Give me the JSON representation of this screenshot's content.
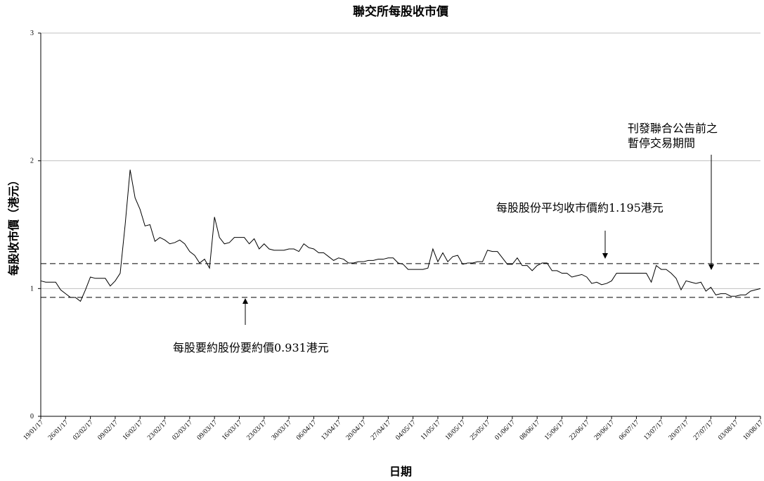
{
  "chart_data": {
    "type": "line",
    "title": "聯交所每股收市價",
    "xlabel": "日期",
    "ylabel": "每股收市價（港元）",
    "ylim": [
      0,
      3
    ],
    "yticks": [
      "0",
      "1",
      "2",
      "3"
    ],
    "grid": "horizontal",
    "x_tick_labels": [
      "19/01/17",
      "26/01/17",
      "02/02/17",
      "09/02/17",
      "16/02/17",
      "23/02/17",
      "02/03/17",
      "09/03/17",
      "16/03/17",
      "23/03/17",
      "30/03/17",
      "06/04/17",
      "13/04/17",
      "20/04/17",
      "27/04/17",
      "04/05/17",
      "11/05/17",
      "18/05/17",
      "25/05/17",
      "01/06/17",
      "08/06/17",
      "15/06/17",
      "22/06/17",
      "29/06/17",
      "06/07/17",
      "13/07/17",
      "20/07/17",
      "27/07/17",
      "03/08/17",
      "10/08/17",
      "17/08/17"
    ],
    "series": [
      {
        "values": [
          1.06,
          1.05,
          1.05,
          1.05,
          0.99,
          0.96,
          0.93,
          0.93,
          0.9,
          0.99,
          1.09,
          1.08,
          1.08,
          1.08,
          1.02,
          1.06,
          1.12,
          1.5,
          1.93,
          1.71,
          1.62,
          1.49,
          1.5,
          1.37,
          1.4,
          1.38,
          1.35,
          1.36,
          1.38,
          1.35,
          1.29,
          1.26,
          1.2,
          1.23,
          1.16,
          1.56,
          1.4,
          1.35,
          1.36,
          1.4,
          1.4,
          1.4,
          1.35,
          1.39,
          1.31,
          1.35,
          1.31,
          1.3,
          1.3,
          1.3,
          1.31,
          1.31,
          1.29,
          1.35,
          1.32,
          1.31,
          1.28,
          1.28,
          1.25,
          1.22,
          1.24,
          1.23,
          1.2,
          1.2,
          1.21,
          1.21,
          1.22,
          1.22,
          1.23,
          1.23,
          1.24,
          1.24,
          1.2,
          1.19,
          1.15,
          1.15,
          1.15,
          1.15,
          1.16,
          1.31,
          1.21,
          1.28,
          1.21,
          1.25,
          1.26,
          1.19,
          1.2,
          1.2,
          1.21,
          1.21,
          1.3,
          1.29,
          1.29,
          1.24,
          1.19,
          1.19,
          1.24,
          1.18,
          1.18,
          1.14,
          1.18,
          1.2,
          1.2,
          1.14,
          1.14,
          1.12,
          1.12,
          1.09,
          1.1,
          1.11,
          1.09,
          1.04,
          1.05,
          1.03,
          1.04,
          1.06,
          1.12,
          1.12,
          1.12,
          1.12,
          1.12,
          1.12,
          1.12,
          1.05,
          1.18,
          1.15,
          1.15,
          1.12,
          1.08,
          0.99,
          1.06,
          1.05,
          1.04,
          1.05,
          0.98,
          1.01,
          0.95,
          0.96,
          0.96,
          0.94,
          0.94,
          0.95,
          0.95,
          0.98,
          0.99,
          1.0
        ]
      }
    ],
    "reference_lines": [
      {
        "value": 1.195,
        "style": "dashed"
      },
      {
        "value": 0.931,
        "style": "dashed"
      }
    ],
    "annotations": {
      "average": "每股股份平均收市價約1.195港元",
      "offer": "每股要約股份要約價0.931港元",
      "suspension_line1": "刊發聯合公告前之",
      "suspension_line2": "暫停交易期間"
    }
  }
}
